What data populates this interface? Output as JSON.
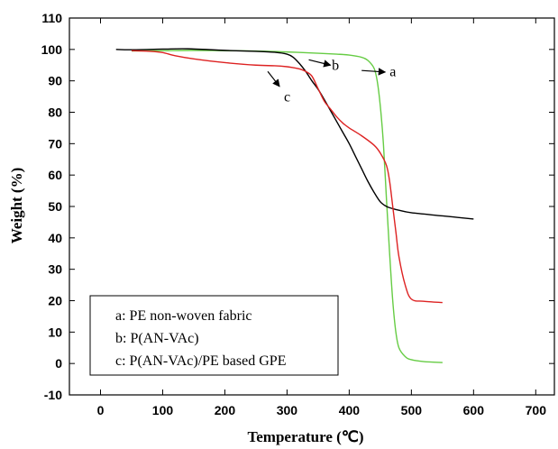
{
  "chart_data": {
    "type": "line",
    "title": "",
    "xlabel": "Temperature (℃)",
    "ylabel": "Weight (%)",
    "xlim": [
      -50,
      730
    ],
    "ylim": [
      -10,
      110
    ],
    "xticks": [
      0,
      100,
      200,
      300,
      400,
      500,
      600,
      700
    ],
    "yticks": [
      -10,
      0,
      10,
      20,
      30,
      40,
      50,
      60,
      70,
      80,
      90,
      100,
      110
    ],
    "grid": false,
    "legend_position": "bottom-left",
    "legend": [
      "a: PE non-woven fabric",
      "b: P(AN-VAc)",
      "c: P(AN-VAc)/PE based GPE"
    ],
    "series": [
      {
        "name": "a",
        "color": "#66cc44",
        "x": [
          50,
          100,
          150,
          200,
          250,
          300,
          350,
          380,
          400,
          420,
          430,
          440,
          445,
          450,
          455,
          460,
          465,
          470,
          475,
          480,
          490,
          500,
          520,
          550
        ],
        "y": [
          99.5,
          99.6,
          99.7,
          99.6,
          99.5,
          99.2,
          98.8,
          98.5,
          98.2,
          97.5,
          96.5,
          94,
          90,
          82,
          70,
          52,
          35,
          20,
          10,
          5,
          2.2,
          1.2,
          0.6,
          0.3
        ]
      },
      {
        "name": "b",
        "color": "#000000",
        "x": [
          25,
          50,
          100,
          140,
          200,
          250,
          280,
          300,
          310,
          320,
          330,
          340,
          350,
          360,
          370,
          380,
          390,
          400,
          410,
          420,
          430,
          440,
          450,
          460,
          470,
          480,
          500,
          550,
          600
        ],
        "y": [
          100,
          99.9,
          100.1,
          100.2,
          99.7,
          99.4,
          99.1,
          98.5,
          97.5,
          95.5,
          93,
          90,
          87.3,
          84,
          80.5,
          77,
          73.5,
          70,
          66,
          62,
          58,
          54.5,
          51.5,
          50,
          49.3,
          48.8,
          48,
          47,
          46
        ]
      },
      {
        "name": "c",
        "color": "#dd2222",
        "x": [
          50,
          80,
          100,
          120,
          150,
          200,
          250,
          280,
          300,
          310,
          320,
          330,
          340,
          350,
          360,
          370,
          380,
          390,
          400,
          420,
          440,
          450,
          460,
          465,
          470,
          475,
          480,
          490,
          500,
          520,
          550
        ],
        "y": [
          99.6,
          99.4,
          99,
          98,
          97,
          95.8,
          95,
          94.8,
          94.5,
          94.2,
          93.8,
          93,
          91.5,
          87.5,
          83.5,
          81,
          78.5,
          76.5,
          75,
          72.5,
          69.5,
          67,
          63,
          58,
          50,
          42,
          34,
          25,
          20.5,
          19.8,
          19.4
        ]
      }
    ],
    "annotations": [
      {
        "label": "a",
        "arrow_from": [
          420,
          93.3
        ],
        "arrow_to": [
          458,
          92.8
        ],
        "text_at": [
          465,
          91.5
        ]
      },
      {
        "label": "b",
        "arrow_from": [
          335,
          96.7
        ],
        "arrow_to": [
          370,
          95.0
        ],
        "text_at": [
          372,
          93.5
        ]
      },
      {
        "label": "c",
        "arrow_from": [
          269,
          93.0
        ],
        "arrow_to": [
          288,
          88.2
        ],
        "text_at": [
          295,
          83.5
        ]
      }
    ]
  }
}
